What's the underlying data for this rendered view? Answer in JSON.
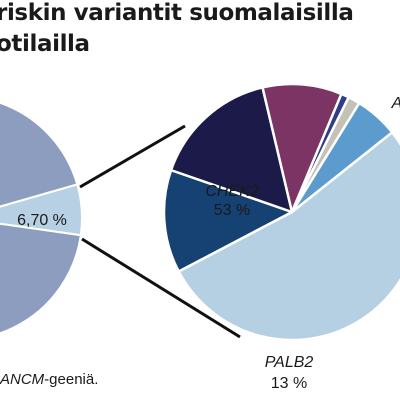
{
  "title": {
    "line1": "riskin variantit suomalaisilla",
    "line2": "otilailla"
  },
  "footnote": {
    "italic": "ANCM",
    "rest": "-geeniä."
  },
  "chart_data": [
    {
      "type": "pie",
      "slices": [
        {
          "label": "",
          "value_label": "6,70 %",
          "value": 6.7,
          "color": "#b8d0e4"
        },
        {
          "label": "",
          "value_label": "",
          "value": 93.3,
          "color": "#8d9dc0"
        }
      ]
    },
    {
      "type": "pie",
      "slices": [
        {
          "label": "CHEK2",
          "value_label": "53 %",
          "value": 53,
          "color": "#b5cfe3"
        },
        {
          "label": "PALB2",
          "value_label": "13 %",
          "value": 13,
          "color": "#164173"
        },
        {
          "label": "",
          "value_label": "",
          "value": 16,
          "color": "#1b1a49"
        },
        {
          "label": "",
          "value_label": "",
          "value": 10,
          "color": "#7b3464"
        },
        {
          "label": "",
          "value_label": "",
          "value": 1,
          "color": "#2e3e85"
        },
        {
          "label": "",
          "value_label": "",
          "value": 1.5,
          "color": "#c4c2b7"
        },
        {
          "label": "A",
          "value_label": "",
          "value": 5.5,
          "color": "#5c9bcd"
        }
      ]
    }
  ]
}
